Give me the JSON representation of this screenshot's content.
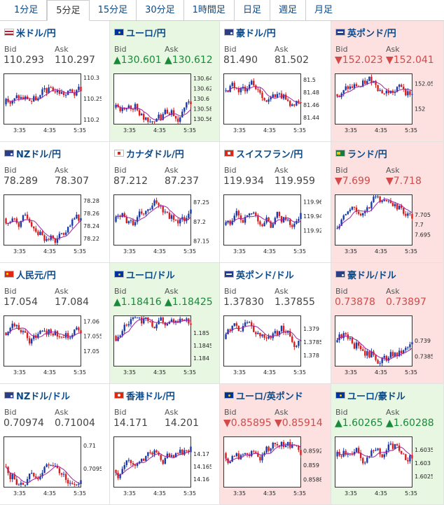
{
  "tabs": [
    "1分足",
    "5分足",
    "15分足",
    "30分足",
    "1時間足",
    "日足",
    "週足",
    "月足"
  ],
  "active_tab": 1,
  "labels": {
    "bid": "Bid",
    "ask": "Ask"
  },
  "colors": {
    "up_candle": "#1a3aa8",
    "down_candle": "#d81e1e",
    "ma": "#a020a0",
    "up_bg": "#e7f7e1",
    "down_bg": "#fde0e0",
    "up_text": "#1a8a3a",
    "down_text": "#d24a4a"
  },
  "pairs": [
    {
      "name": "米ドル/円",
      "flag": "us-flag-icon",
      "state": "",
      "bid": "110.293",
      "ask": "110.297",
      "chart_data": {
        "type": "candlestick",
        "ylim": [
          110.19,
          110.31
        ],
        "yticks": [
          "110.3",
          "110.25",
          "110.2"
        ],
        "xticks": [
          "3:35",
          "4:35",
          "5:35"
        ]
      }
    },
    {
      "name": "ユーロ/円",
      "flag": "eu-flag-icon",
      "state": "up",
      "bid": "▲130.601",
      "ask": "▲130.612",
      "chart_data": {
        "type": "candlestick",
        "ylim": [
          130.55,
          130.65
        ],
        "yticks": [
          "130.64",
          "130.62",
          "130.6",
          "130.58",
          "130.56"
        ],
        "xticks": [
          "3:35",
          "4:35",
          "5:35"
        ]
      }
    },
    {
      "name": "豪ドル/円",
      "flag": "au-flag-icon",
      "state": "",
      "bid": "81.490",
      "ask": "81.502",
      "chart_data": {
        "type": "candlestick",
        "ylim": [
          81.43,
          81.51
        ],
        "yticks": [
          "81.5",
          "81.48",
          "81.46",
          "81.44"
        ],
        "xticks": [
          "3:35",
          "4:35",
          "5:35"
        ]
      }
    },
    {
      "name": "英ポンド/円",
      "flag": "gb-flag-icon",
      "state": "down",
      "bid": "▼152.023",
      "ask": "▼152.041",
      "chart_data": {
        "type": "candlestick",
        "ylim": [
          151.97,
          152.07
        ],
        "yticks": [
          "152.05",
          "152"
        ],
        "xticks": [
          "3:35",
          "4:35",
          "5:35"
        ]
      }
    },
    {
      "name": "NZドル/円",
      "flag": "nz-flag-icon",
      "state": "",
      "bid": "78.289",
      "ask": "78.307",
      "chart_data": {
        "type": "candlestick",
        "ylim": [
          78.21,
          78.29
        ],
        "yticks": [
          "78.28",
          "78.26",
          "78.24",
          "78.22"
        ],
        "xticks": [
          "3:35",
          "4:35",
          "5:35"
        ]
      }
    },
    {
      "name": "カナダドル/円",
      "flag": "ca-flag-icon",
      "state": "",
      "bid": "87.212",
      "ask": "87.237",
      "chart_data": {
        "type": "candlestick",
        "ylim": [
          87.14,
          87.27
        ],
        "yticks": [
          "87.25",
          "87.2",
          "87.15"
        ],
        "xticks": [
          "3:35",
          "4:35",
          "5:35"
        ]
      }
    },
    {
      "name": "スイスフラン/円",
      "flag": "ch-flag-icon",
      "state": "",
      "bid": "119.934",
      "ask": "119.959",
      "chart_data": {
        "type": "candlestick",
        "ylim": [
          119.9,
          119.97
        ],
        "yticks": [
          "119.96",
          "119.94",
          "119.92"
        ],
        "xticks": [
          "3:35",
          "4:35",
          "5:35"
        ]
      }
    },
    {
      "name": "ランド/円",
      "flag": "za-flag-icon",
      "state": "down",
      "bid": "▼7.699",
      "ask": "▼7.718",
      "chart_data": {
        "type": "candlestick",
        "ylim": [
          7.69,
          7.715
        ],
        "yticks": [
          "7.705",
          "7.7",
          "7.695"
        ],
        "xticks": [
          "3:35",
          "4:35",
          "5:35"
        ]
      }
    },
    {
      "name": "人民元/円",
      "flag": "cn-flag-icon",
      "state": "",
      "bid": "17.054",
      "ask": "17.084",
      "chart_data": {
        "type": "candlestick",
        "ylim": [
          17.045,
          17.062
        ],
        "yticks": [
          "17.06",
          "17.055",
          "17.05"
        ],
        "xticks": [
          "3:35",
          "4:35",
          "5:35"
        ]
      }
    },
    {
      "name": "ユーロ/ドル",
      "flag": "eu-flag-icon",
      "state": "up",
      "bid": "▲1.18416",
      "ask": "▲1.18425",
      "chart_data": {
        "type": "candlestick",
        "ylim": [
          1.1837,
          1.1857
        ],
        "yticks": [
          "1.185",
          "1.1845",
          "1.184"
        ],
        "xticks": [
          "3:35",
          "4:35",
          "5:35"
        ]
      }
    },
    {
      "name": "英ポンド/ドル",
      "flag": "gb-flag-icon",
      "state": "",
      "bid": "1.37830",
      "ask": "1.37855",
      "chart_data": {
        "type": "candlestick",
        "ylim": [
          1.3776,
          1.3795
        ],
        "yticks": [
          "1.379",
          "1.3785",
          "1.378"
        ],
        "xticks": [
          "3:35",
          "4:35",
          "5:35"
        ]
      }
    },
    {
      "name": "豪ドル/ドル",
      "flag": "au-flag-icon",
      "state": "down",
      "bid": "0.73878",
      "ask": "0.73897",
      "chart_data": {
        "type": "candlestick",
        "ylim": [
          0.7382,
          0.7398
        ],
        "yticks": [
          "0.739",
          "0.7385"
        ],
        "xticks": [
          "3:35",
          "4:35",
          "5:35"
        ]
      }
    },
    {
      "name": "NZドル/ドル",
      "flag": "nz-flag-icon",
      "state": "",
      "bid": "0.70974",
      "ask": "0.71004",
      "chart_data": {
        "type": "candlestick",
        "ylim": [
          0.7091,
          0.7102
        ],
        "yticks": [
          "0.71",
          "0.7095"
        ],
        "xticks": [
          "3:35",
          "4:35",
          "5:35"
        ]
      }
    },
    {
      "name": "香港ドル/円",
      "flag": "hk-flag-icon",
      "state": "",
      "bid": "14.171",
      "ask": "14.201",
      "chart_data": {
        "type": "candlestick",
        "ylim": [
          14.157,
          14.177
        ],
        "yticks": [
          "14.17",
          "14.165",
          "14.16"
        ],
        "xticks": [
          "3:35",
          "4:35",
          "5:35"
        ]
      }
    },
    {
      "name": "ユーロ/英ポンド",
      "flag": "eu-flag-icon",
      "state": "down",
      "bid": "▼0.85895",
      "ask": "▼0.85914",
      "chart_data": {
        "type": "candlestick",
        "ylim": [
          0.8587,
          0.8594
        ],
        "yticks": [
          "0.8592",
          "0.859",
          "0.8588"
        ],
        "xticks": [
          "3:35",
          "4:35",
          "5:35"
        ]
      }
    },
    {
      "name": "ユーロ/豪ドル",
      "flag": "eu-flag-icon",
      "state": "up",
      "bid": "▲1.60265",
      "ask": "▲1.60288",
      "chart_data": {
        "type": "candlestick",
        "ylim": [
          1.6021,
          1.604
        ],
        "yticks": [
          "1.6035",
          "1.603",
          "1.6025"
        ],
        "xticks": [
          "3:35",
          "4:35",
          "5:35"
        ]
      }
    }
  ]
}
